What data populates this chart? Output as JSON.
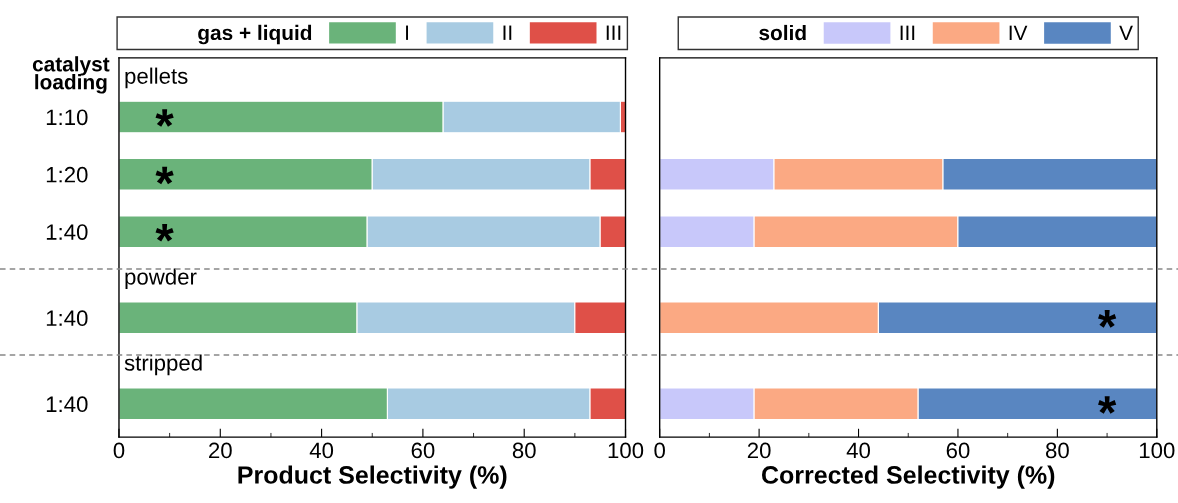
{
  "chart_data": [
    {
      "type": "bar",
      "orientation": "horizontal",
      "stacked": true,
      "ylabel": "catalyst loading",
      "xlabel": "Product Selectivity (%)",
      "legend_title": "gas + liquid",
      "legend": "top",
      "categories": [
        "1:10",
        "1:20",
        "1:40",
        "1:40",
        "1:40"
      ],
      "series": [
        {
          "name": "I",
          "color": "#6ab37a",
          "values": [
            64,
            50,
            49,
            47,
            53
          ]
        },
        {
          "name": "II",
          "color": "#a8cbe2",
          "values": [
            35,
            43,
            46,
            43,
            40
          ]
        },
        {
          "name": "III",
          "color": "#df5048",
          "values": [
            1,
            7,
            5,
            10,
            7
          ]
        }
      ],
      "xlim": [
        0,
        100
      ],
      "xticks": [
        0,
        20,
        40,
        60,
        80,
        100
      ],
      "grid": false,
      "annotations": [
        "pellets",
        "powder",
        "stripped",
        "*",
        "*",
        "*"
      ]
    },
    {
      "type": "bar",
      "orientation": "horizontal",
      "stacked": true,
      "xlabel": "Corrected Selectivity (%)",
      "legend_title": "solid",
      "legend": "top",
      "tick_labels": "x",
      "series": [
        {
          "name": "III",
          "color": "#c8c8fa",
          "values": [
            null,
            23,
            19,
            0,
            19
          ]
        },
        {
          "name": "IV",
          "color": "#fba983",
          "values": [
            null,
            34,
            41,
            44,
            33
          ]
        },
        {
          "name": "V",
          "color": "#5986c1",
          "values": [
            null,
            43,
            40,
            56,
            48
          ]
        }
      ],
      "xlim": [
        0,
        100
      ],
      "xticks": [
        0,
        20,
        40,
        60,
        80,
        100
      ],
      "grid": false,
      "annotations": [
        "*",
        "*"
      ]
    }
  ]
}
